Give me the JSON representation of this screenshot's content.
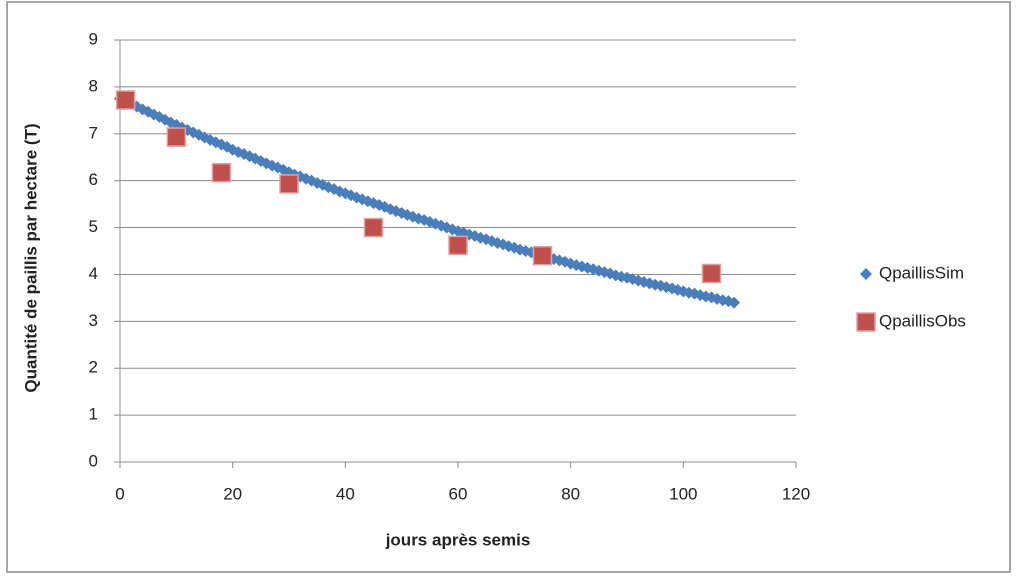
{
  "chart_data": {
    "type": "scatter",
    "x_label": "jours après semis",
    "y_label": "Quantité de paillis par hectare (T)",
    "xlim": [
      0,
      120
    ],
    "xticks": [
      0,
      20,
      40,
      60,
      80,
      100,
      120
    ],
    "ylim": [
      0,
      9
    ],
    "yticks": [
      0,
      1,
      2,
      3,
      4,
      5,
      6,
      7,
      8,
      9
    ],
    "grid": true,
    "legend": "right",
    "series": [
      {
        "name": "QpaillisSim",
        "color": "#4a7ebb",
        "marker": "diamond",
        "x": [
          0,
          1,
          2,
          3,
          4,
          5,
          6,
          7,
          8,
          9,
          10,
          11,
          12,
          13,
          14,
          15,
          16,
          17,
          18,
          19,
          20,
          21,
          22,
          23,
          24,
          25,
          26,
          27,
          28,
          29,
          30,
          31,
          32,
          33,
          34,
          35,
          36,
          37,
          38,
          39,
          40,
          41,
          42,
          43,
          44,
          45,
          46,
          47,
          48,
          49,
          50,
          51,
          52,
          53,
          54,
          55,
          56,
          57,
          58,
          59,
          60,
          61,
          62,
          63,
          64,
          65,
          66,
          67,
          68,
          69,
          70,
          71,
          72,
          73,
          74,
          75,
          76,
          77,
          78,
          79,
          80,
          81,
          82,
          83,
          84,
          85,
          86,
          87,
          88,
          89,
          90,
          91,
          92,
          93,
          94,
          95,
          96,
          97,
          98,
          99,
          100,
          101,
          102,
          103,
          104,
          105,
          106,
          107,
          108,
          109
        ],
        "values": [
          7.75,
          7.69,
          7.64,
          7.58,
          7.52,
          7.47,
          7.41,
          7.36,
          7.3,
          7.24,
          7.19,
          7.13,
          7.08,
          7.03,
          6.98,
          6.92,
          6.87,
          6.82,
          6.77,
          6.72,
          6.66,
          6.61,
          6.57,
          6.52,
          6.47,
          6.42,
          6.37,
          6.32,
          6.28,
          6.23,
          6.18,
          6.13,
          6.09,
          6.04,
          6.0,
          5.95,
          5.91,
          5.86,
          5.82,
          5.77,
          5.73,
          5.69,
          5.64,
          5.6,
          5.56,
          5.52,
          5.48,
          5.44,
          5.39,
          5.35,
          5.31,
          5.27,
          5.23,
          5.19,
          5.16,
          5.12,
          5.08,
          5.04,
          5.0,
          4.96,
          4.92,
          4.89,
          4.85,
          4.82,
          4.78,
          4.75,
          4.71,
          4.67,
          4.64,
          4.6,
          4.57,
          4.53,
          4.5,
          4.47,
          4.43,
          4.4,
          4.37,
          4.33,
          4.3,
          4.27,
          4.23,
          4.2,
          4.17,
          4.14,
          4.11,
          4.08,
          4.05,
          4.02,
          3.98,
          3.95,
          3.93,
          3.9,
          3.87,
          3.84,
          3.81,
          3.78,
          3.76,
          3.73,
          3.7,
          3.67,
          3.64,
          3.61,
          3.59,
          3.56,
          3.53,
          3.51,
          3.48,
          3.45,
          3.43,
          3.4
        ]
      },
      {
        "name": "QpaillisObs",
        "color": "#c0504d",
        "marker": "square",
        "x": [
          1,
          10,
          18,
          30,
          45,
          60,
          75,
          105
        ],
        "values": [
          7.72,
          6.93,
          6.17,
          5.93,
          5.0,
          4.62,
          4.4,
          4.02
        ]
      }
    ]
  }
}
